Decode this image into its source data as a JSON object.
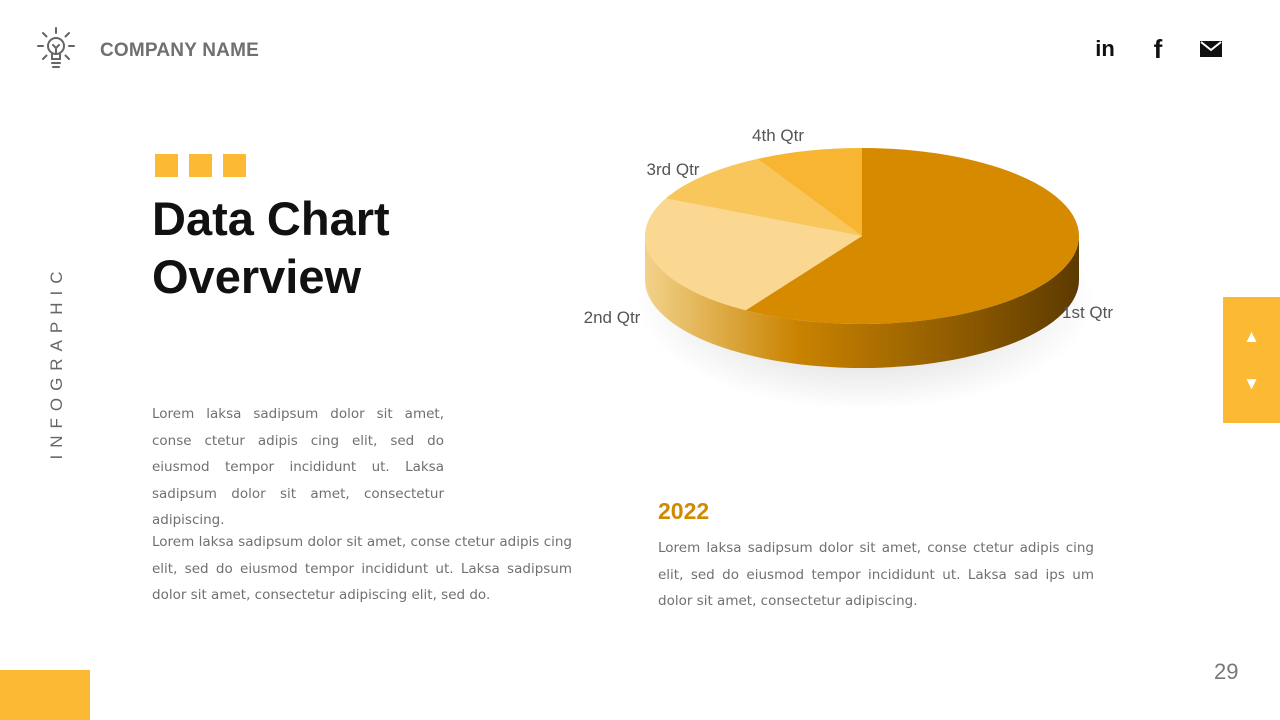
{
  "header": {
    "company_name": "COMPANY NAME",
    "logo_icon": "lightbulb-icon",
    "social": [
      {
        "name": "linkedin-icon",
        "label": "in"
      },
      {
        "name": "facebook-icon",
        "label": "f"
      },
      {
        "name": "mail-icon"
      }
    ]
  },
  "sidebar": {
    "vertical_text": "INFOGRAPHIC"
  },
  "main": {
    "title_line1": "Data Chart",
    "title_line2": "Overview",
    "paragraph1": "Lorem laksa sadipsum dolor sit amet, conse ctetur adipis cing elit, sed do eiusmod tempor incididunt ut. Laksa sadipsum dolor sit amet, consectetur adipiscing.",
    "paragraph2": "Lorem laksa sadipsum dolor sit amet, conse ctetur adipis cing elit, sed do eiusmod tempor incididunt ut. Laksa sadipsum dolor sit amet, consectetur adipiscing elit, sed do.",
    "year": "2022",
    "paragraph3": "Lorem laksa sadipsum dolor sit amet, conse ctetur adipis cing elit, sed do eiusmod tempor incididunt ut. Laksa sad ips um dolor sit amet, consectetur adipiscing."
  },
  "nav": {
    "up": "▲",
    "down": "▼"
  },
  "footer": {
    "page_number": "29"
  },
  "colors": {
    "accent": "#fbb934",
    "year": "#d18a00",
    "slice_1st": "#d68a00",
    "slice_2nd": "#fad892",
    "slice_3rd": "#f9c65c",
    "slice_4th": "#f8b532"
  },
  "chart_data": {
    "type": "pie",
    "style": "3d",
    "categories": [
      "1st Qtr",
      "2nd Qtr",
      "3rd Qtr",
      "4th Qtr"
    ],
    "values": [
      59,
      23,
      10,
      8
    ],
    "colors": [
      "#d68a00",
      "#fad892",
      "#f9c65c",
      "#f8b532"
    ]
  }
}
